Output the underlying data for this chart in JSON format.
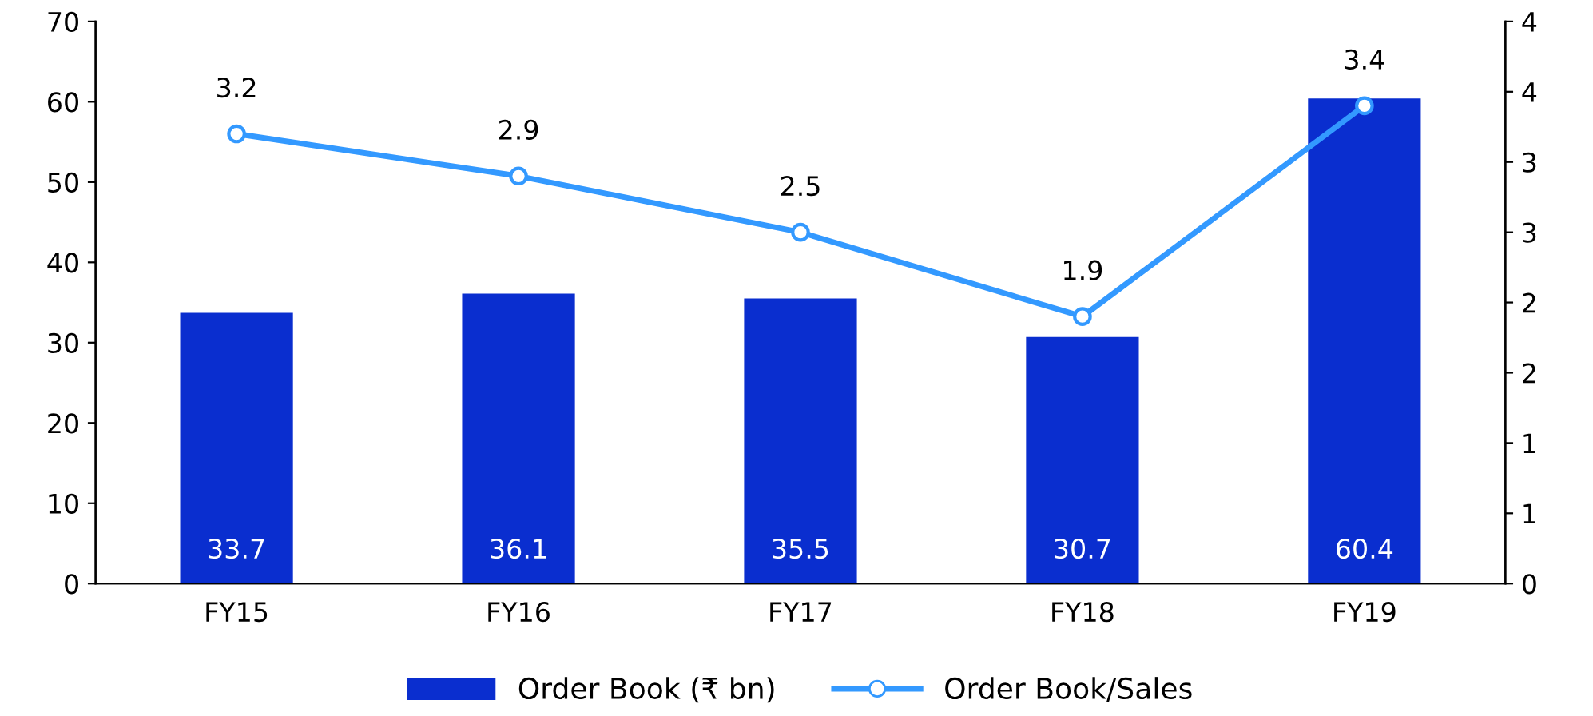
{
  "chart_data": {
    "type": "bar",
    "categories": [
      "FY15",
      "FY16",
      "FY17",
      "FY18",
      "FY19"
    ],
    "series": [
      {
        "name": "Order Book (₹ bn)",
        "color": "#0a2ecf",
        "values": [
          33.7,
          36.1,
          35.5,
          30.7,
          60.4
        ]
      },
      {
        "name": "Order Book/Sales",
        "type": "line",
        "axis": "y2",
        "color": "#3399ff",
        "marker": "circle",
        "values": [
          3.2,
          2.9,
          2.5,
          1.9,
          3.4
        ]
      }
    ],
    "ylim": [
      0,
      70
    ],
    "yticks": [
      0,
      10,
      20,
      30,
      40,
      50,
      60,
      70
    ],
    "y2lim": [
      0,
      4
    ],
    "y2ticks": [
      0,
      {
        "value": 0.5,
        "label": "1"
      },
      1,
      {
        "value": 1.5,
        "label": "2"
      },
      2,
      {
        "value": 2.5,
        "label": "3"
      },
      3,
      {
        "value": 3.5,
        "label": "4"
      },
      4
    ],
    "data_labels": true,
    "grid": false,
    "legend": "bottom"
  }
}
